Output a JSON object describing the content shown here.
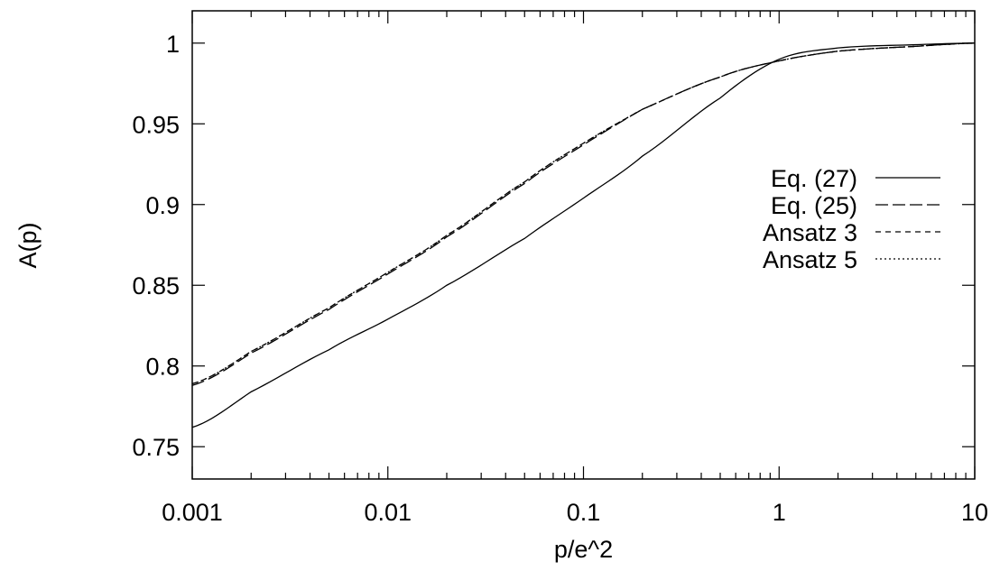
{
  "chart_data": {
    "type": "line",
    "title": "",
    "xlabel": "p/e^2",
    "ylabel": "A(p)",
    "xscale": "log",
    "xlim": [
      0.001,
      10
    ],
    "ylim": [
      0.73,
      1.02
    ],
    "grid": false,
    "legend_position": "right",
    "x_ticks": [
      0.001,
      0.01,
      0.1,
      1,
      10
    ],
    "x_tick_labels": [
      "0.001",
      "0.01",
      "0.1",
      "1",
      "10"
    ],
    "y_ticks": [
      0.75,
      0.8,
      0.85,
      0.9,
      0.95,
      1
    ],
    "y_tick_labels": [
      "0.75",
      "0.8",
      "0.85",
      "0.9",
      "0.95",
      "1"
    ],
    "series": [
      {
        "name": "Eq. (27)",
        "style": "solid",
        "x": [
          0.001,
          0.002,
          0.005,
          0.01,
          0.02,
          0.05,
          0.1,
          0.2,
          0.5,
          1,
          2,
          5,
          10
        ],
        "y": [
          0.762,
          0.784,
          0.81,
          0.829,
          0.85,
          0.879,
          0.904,
          0.93,
          0.966,
          0.99,
          0.997,
          0.999,
          1.0
        ]
      },
      {
        "name": "Eq. (25)",
        "style": "dashed",
        "x": [
          0.001,
          0.002,
          0.005,
          0.01,
          0.02,
          0.05,
          0.1,
          0.2,
          0.5,
          1,
          2,
          5,
          10
        ],
        "y": [
          0.788,
          0.808,
          0.835,
          0.857,
          0.88,
          0.913,
          0.937,
          0.959,
          0.979,
          0.989,
          0.995,
          0.998,
          1.0
        ]
      },
      {
        "name": "Ansatz 3",
        "style": "short-dashed",
        "x": [
          0.001,
          0.002,
          0.005,
          0.01,
          0.02,
          0.05,
          0.1,
          0.2,
          0.5,
          1,
          2,
          5,
          10
        ],
        "y": [
          0.789,
          0.809,
          0.836,
          0.858,
          0.881,
          0.914,
          0.938,
          0.959,
          0.979,
          0.989,
          0.995,
          0.998,
          1.0
        ]
      },
      {
        "name": "Ansatz 5",
        "style": "dotted",
        "x": [
          0.001,
          0.002,
          0.005,
          0.01,
          0.02,
          0.05,
          0.1,
          0.2,
          0.5,
          1,
          2,
          5,
          10
        ],
        "y": [
          0.789,
          0.809,
          0.836,
          0.858,
          0.881,
          0.914,
          0.938,
          0.959,
          0.979,
          0.989,
          0.995,
          0.998,
          1.0
        ]
      }
    ]
  }
}
